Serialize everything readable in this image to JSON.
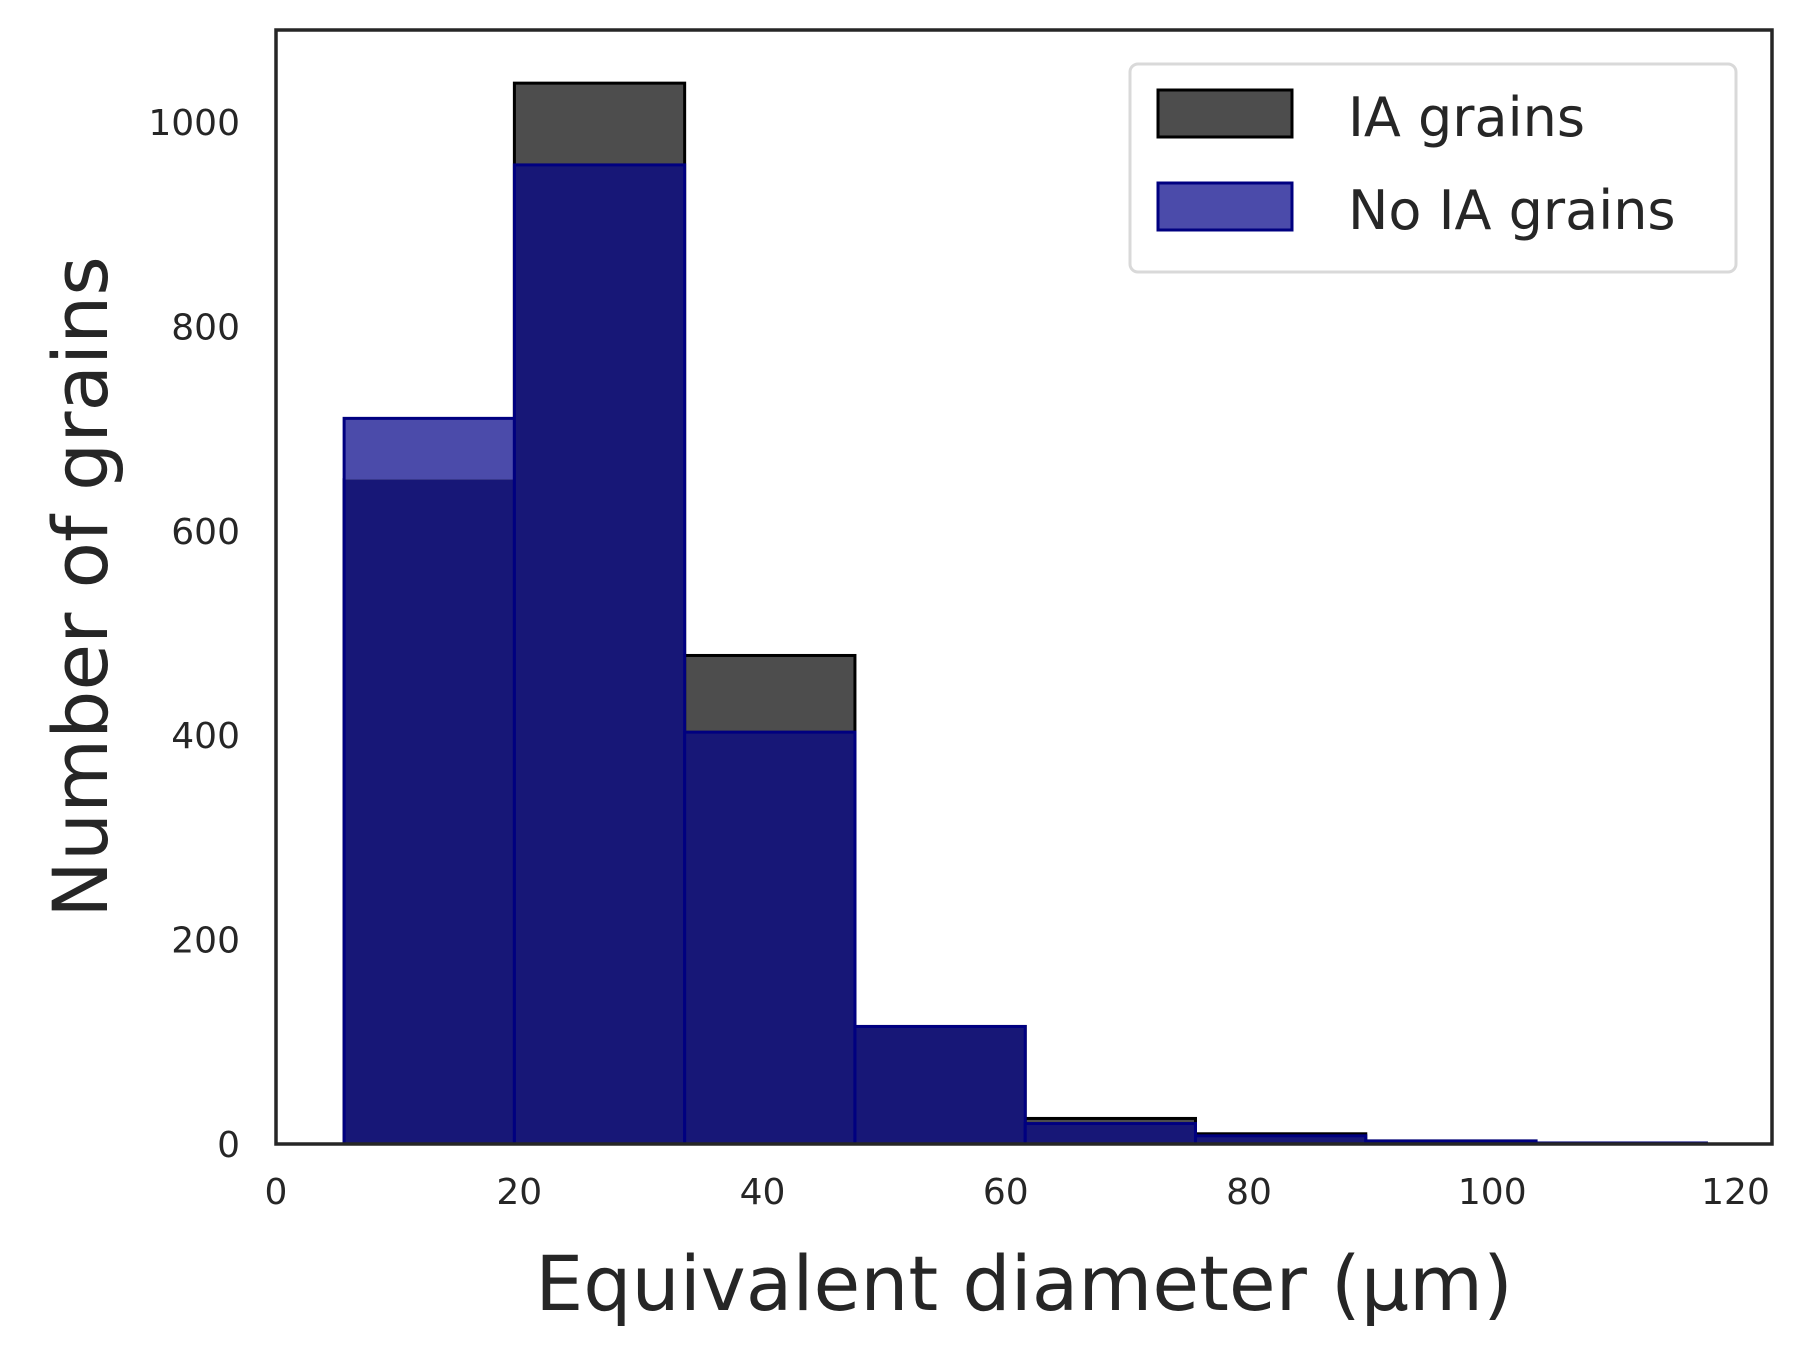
{
  "chart_data": {
    "type": "bar",
    "subtype": "histogram",
    "xlabel": "Equivalent diameter (μm)",
    "ylabel": "Number of grains",
    "xlim": [
      0,
      123
    ],
    "ylim": [
      0,
      1090
    ],
    "xticks": [
      0,
      20,
      40,
      60,
      80,
      100,
      120
    ],
    "yticks": [
      0,
      200,
      400,
      600,
      800,
      1000
    ],
    "grid": false,
    "legend": "top-right",
    "bin_edges": [
      5.6,
      19.6,
      33.6,
      47.6,
      61.6,
      75.6,
      89.6,
      103.6,
      117.6
    ],
    "series": [
      {
        "name": "IA grains",
        "color": "#4d4d4d",
        "edge_color": "#000000",
        "values": [
          650,
          1038,
          478,
          115,
          25,
          10,
          3,
          1
        ]
      },
      {
        "name": "No IA grains",
        "color": "#4b4baa",
        "edge_color": "#000080",
        "overlap_color": "#171777",
        "values": [
          710,
          958,
          403,
          115,
          20,
          8,
          3,
          1
        ]
      }
    ]
  }
}
